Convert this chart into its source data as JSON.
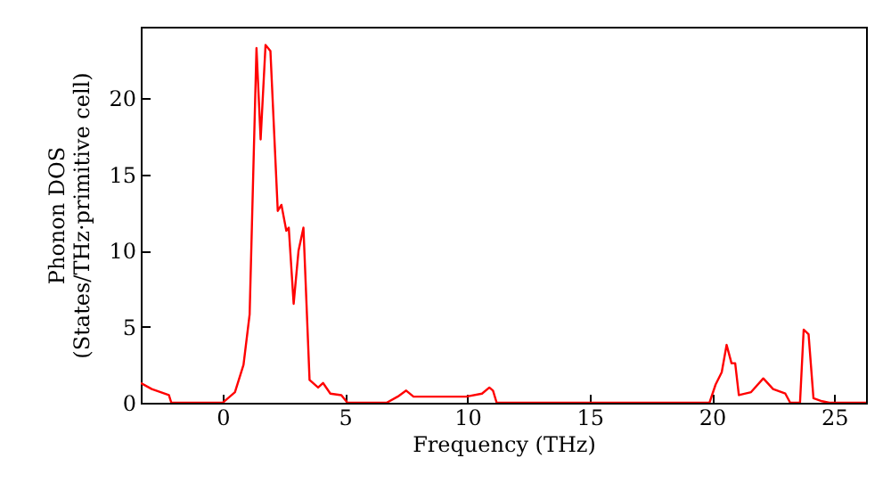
{
  "chart_data": {
    "type": "line",
    "xlabel": "Frequency (THz)",
    "ylabel": "Phonon DOS\n(States/THz·primitive cell)",
    "x": [
      -3.35,
      -2.9,
      -2.2,
      -2.1,
      0,
      0.5,
      0.85,
      1.1,
      1.38,
      1.55,
      1.75,
      1.95,
      2.25,
      2.4,
      2.6,
      2.7,
      2.9,
      3.1,
      3.3,
      3.55,
      3.9,
      4.1,
      4.4,
      4.85,
      5.1,
      6.7,
      7.15,
      7.5,
      7.8,
      9.95,
      10.6,
      10.9,
      11.05,
      11.2,
      19.9,
      20.15,
      20.4,
      20.6,
      20.8,
      20.95,
      21.1,
      21.6,
      22.1,
      22.5,
      23.0,
      23.2,
      23.6,
      23.75,
      23.95,
      24.15,
      24.5,
      24.8,
      26.3
    ],
    "series": [
      {
        "color": "#ff0000",
        "values": [
          1.3,
          0.9,
          0.5,
          0,
          0,
          0.7,
          2.5,
          5.8,
          23.3,
          17.3,
          23.5,
          23.1,
          12.6,
          13.0,
          11.3,
          11.5,
          6.5,
          10.0,
          11.5,
          1.5,
          1.0,
          1.3,
          0.6,
          0.5,
          0,
          0,
          0.4,
          0.8,
          0.4,
          0.4,
          0.6,
          1.0,
          0.8,
          0,
          0,
          1.2,
          2.0,
          3.8,
          2.6,
          2.6,
          0.5,
          0.7,
          1.6,
          0.9,
          0.6,
          0,
          0,
          4.8,
          4.5,
          0.3,
          0.1,
          0,
          0
        ]
      }
    ],
    "xlim": [
      -3.35,
      26.3
    ],
    "ylim": [
      0,
      24.7
    ],
    "xticks": [
      0,
      5,
      10,
      15,
      20,
      25
    ],
    "yticks": [
      0,
      5,
      10,
      15,
      20
    ],
    "grid": false,
    "marker": "none",
    "line_style": "solid"
  }
}
